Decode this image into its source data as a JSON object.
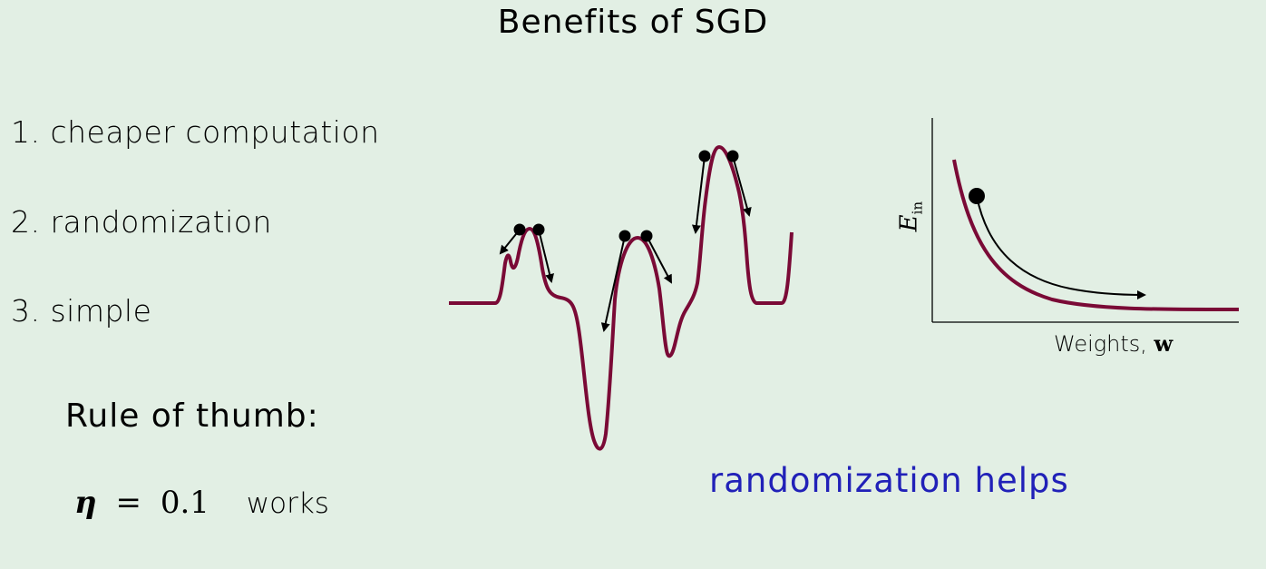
{
  "title": "Benefits of SGD",
  "benefits": [
    "1. cheaper computation",
    "2. randomization",
    "3. simple"
  ],
  "rule_of_thumb": "Rule of thumb:",
  "eta_symbol": "η",
  "equals": "=",
  "eta_value": "0.1",
  "works": "works",
  "randomization_helps": "randomization helps",
  "plot": {
    "x_label_text": "Weights, ",
    "x_label_bold": "w",
    "y_label_main": "E",
    "y_label_sub": "in"
  },
  "colors": {
    "background": "#e2efe4",
    "curve": "#7a0a36",
    "accent_text": "#2121b8"
  }
}
